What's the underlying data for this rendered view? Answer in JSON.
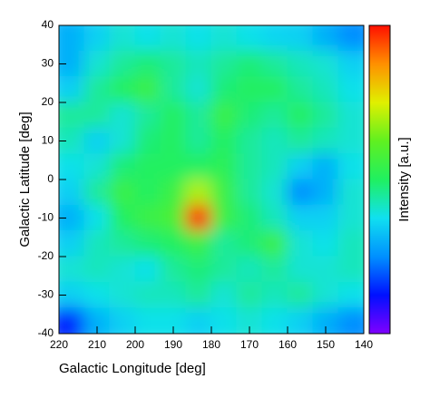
{
  "chart_data": {
    "type": "heatmap",
    "xlabel": "Galactic Longitude [deg]",
    "ylabel": "Galactic Latitude [deg]",
    "colorbar_label": "Intensity [a.u.]",
    "xlim": [
      220,
      140
    ],
    "xticks": [
      220,
      210,
      200,
      190,
      180,
      170,
      160,
      150,
      140
    ],
    "ylim": [
      -40,
      40
    ],
    "yticks": [
      -40,
      -30,
      -20,
      -10,
      0,
      10,
      20,
      30,
      40
    ],
    "zlim": [
      0,
      1
    ],
    "colormap": [
      "#8000ff",
      "#0010ff",
      "#0090ff",
      "#10e0f0",
      "#20f060",
      "#60f020",
      "#e0f000",
      "#ff9000",
      "#ff1000"
    ],
    "z": [
      [
        0.3,
        0.35,
        0.4,
        0.38,
        0.4,
        0.38,
        0.4,
        0.38,
        0.36,
        0.35,
        0.3,
        0.25
      ],
      [
        0.3,
        0.4,
        0.45,
        0.48,
        0.45,
        0.42,
        0.45,
        0.48,
        0.45,
        0.42,
        0.4,
        0.35
      ],
      [
        0.35,
        0.45,
        0.5,
        0.55,
        0.45,
        0.4,
        0.48,
        0.5,
        0.5,
        0.45,
        0.42,
        0.38
      ],
      [
        0.45,
        0.45,
        0.4,
        0.45,
        0.5,
        0.45,
        0.55,
        0.48,
        0.45,
        0.5,
        0.45,
        0.4
      ],
      [
        0.42,
        0.35,
        0.4,
        0.48,
        0.5,
        0.45,
        0.5,
        0.45,
        0.42,
        0.45,
        0.42,
        0.4
      ],
      [
        0.38,
        0.4,
        0.48,
        0.5,
        0.5,
        0.5,
        0.52,
        0.45,
        0.42,
        0.35,
        0.3,
        0.38
      ],
      [
        0.35,
        0.45,
        0.55,
        0.5,
        0.55,
        0.7,
        0.55,
        0.45,
        0.4,
        0.25,
        0.3,
        0.4
      ],
      [
        0.3,
        0.38,
        0.5,
        0.55,
        0.58,
        1.0,
        0.55,
        0.48,
        0.42,
        0.35,
        0.35,
        0.4
      ],
      [
        0.35,
        0.42,
        0.45,
        0.48,
        0.5,
        0.55,
        0.45,
        0.48,
        0.55,
        0.4,
        0.38,
        0.42
      ],
      [
        0.4,
        0.42,
        0.4,
        0.38,
        0.45,
        0.48,
        0.45,
        0.42,
        0.45,
        0.4,
        0.4,
        0.42
      ],
      [
        0.35,
        0.38,
        0.4,
        0.42,
        0.42,
        0.45,
        0.4,
        0.45,
        0.42,
        0.45,
        0.4,
        0.38
      ],
      [
        0.15,
        0.3,
        0.35,
        0.38,
        0.38,
        0.35,
        0.38,
        0.4,
        0.38,
        0.35,
        0.3,
        0.25
      ]
    ]
  }
}
